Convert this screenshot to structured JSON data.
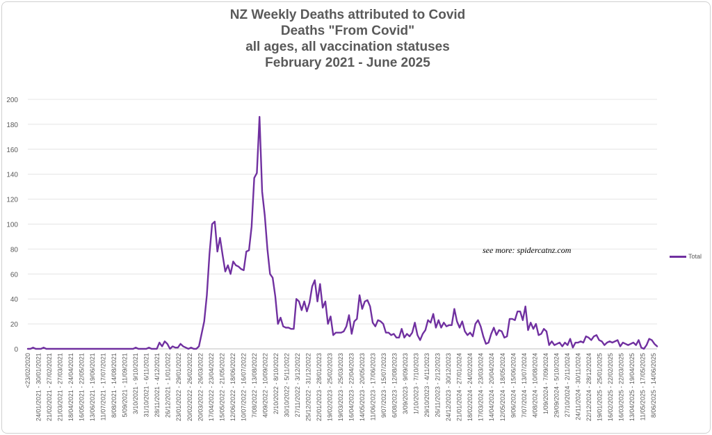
{
  "chart_data": {
    "type": "line",
    "title_lines": [
      "NZ Weekly Deaths attributed to Covid",
      "Deaths \"From Covid\"",
      "all ages, all vaccination statuses",
      "February 2021 - June 2025"
    ],
    "annotation": "see more:  spidercatnz.com",
    "ylim": [
      0,
      200
    ],
    "yticks": [
      0,
      20,
      40,
      60,
      80,
      100,
      120,
      140,
      160,
      180,
      200
    ],
    "grid": true,
    "legend_position": "right",
    "series_color": "#7030a0",
    "x_tick_labels": [
      "<23/02/2020",
      "24/01/2021 - 30/01/2021",
      "21/02/2021 - 27/02/2021",
      "21/03/2021 - 27/03/2021",
      "18/04/2021 - 24/04/2021",
      "16/05/2021 - 22/05/2021",
      "13/06/2021 - 19/06/2021",
      "11/07/2021 - 17/07/2021",
      "8/08/2021 - 14/08/2021",
      "5/09/2021 - 11/09/2021",
      "3/10/2021 - 9/10/2021",
      "31/10/2021 - 6/11/2021",
      "28/11/2021 - 4/12/2021",
      "26/12/2021 - 1/01/2022",
      "23/01/2022 - 29/01/2022",
      "20/02/2022 - 26/02/2022",
      "20/03/2022 - 26/03/2022",
      "17/04/2022 - 23/04/2022",
      "15/05/2022 - 21/05/2022",
      "12/06/2022 - 18/06/2022",
      "10/07/2022 - 16/07/2022",
      "7/08/2022 - 13/08/2022",
      "4/09/2022 - 10/09/2022",
      "2/10/2022 - 8/10/2022",
      "30/10/2022 - 5/11/2022",
      "27/11/2022 - 3/12/2022",
      "25/12/2022 - 31/12/2022",
      "22/01/2023 - 28/01/2023",
      "19/02/2023 - 25/02/2023",
      "19/03/2023 - 25/03/2023",
      "16/04/2023 - 22/04/2023",
      "14/05/2023 - 20/05/2023",
      "11/06/2023 - 17/06/2023",
      "9/07/2023 - 15/07/2023",
      "6/08/2023 - 12/08/2023",
      "3/09/2023 - 9/09/2023",
      "1/10/2023 - 7/10/2023",
      "29/10/2023 - 4/11/2023",
      "26/11/2023 - 2/12/2023",
      "24/12/2023 - 30/12/2023",
      "21/01/2024 - 27/01/2024",
      "18/02/2024 - 24/02/2024",
      "17/03/2024 - 23/03/2024",
      "14/04/2024 - 20/04/2024",
      "12/05/2024 - 18/05/2024",
      "9/06/2024 - 15/06/2024",
      "7/07/2024 - 13/07/2024",
      "4/08/2024 - 10/08/2024",
      "1/09/2024 - 7/09/2024",
      "29/09/2024 - 5/10/2024",
      "27/10/2024 - 2/11/2024",
      "24/11/2024 - 30/11/2024",
      "22/12/2024 - 28/12/2024",
      "19/01/2025 - 25/01/2025",
      "16/02/2025 - 22/02/2025",
      "16/03/2025 - 22/03/2025",
      "13/04/2025 - 19/04/2025",
      "11/05/2025 - 17/05/2025",
      "8/06/2025 - 14/06/2025"
    ],
    "series": [
      {
        "name": "Total",
        "values": [
          0,
          0,
          1,
          0,
          0,
          0,
          1,
          0,
          0,
          0,
          0,
          0,
          0,
          0,
          0,
          0,
          0,
          0,
          0,
          0,
          0,
          0,
          0,
          0,
          0,
          0,
          0,
          0,
          0,
          0,
          0,
          0,
          0,
          0,
          0,
          0,
          0,
          0,
          0,
          0,
          0,
          1,
          0,
          0,
          0,
          0,
          1,
          0,
          0,
          0,
          5,
          2,
          6,
          4,
          0,
          2,
          1,
          1,
          4,
          2,
          1,
          0,
          1,
          0,
          0,
          2,
          12,
          22,
          43,
          76,
          100,
          102,
          78,
          89,
          75,
          62,
          67,
          60,
          70,
          67,
          66,
          64,
          63,
          78,
          79,
          98,
          137,
          141,
          186,
          126,
          107,
          80,
          60,
          57,
          42,
          20,
          25,
          18,
          17,
          17,
          16,
          16,
          40,
          38,
          31,
          38,
          30,
          37,
          50,
          55,
          38,
          52,
          33,
          38,
          20,
          26,
          11,
          13,
          13,
          13,
          14,
          18,
          27,
          12,
          22,
          24,
          43,
          32,
          38,
          39,
          34,
          21,
          18,
          23,
          22,
          20,
          13,
          13,
          11,
          12,
          9,
          9,
          16,
          9,
          12,
          10,
          13,
          21,
          11,
          7,
          12,
          15,
          23,
          21,
          28,
          17,
          23,
          17,
          21,
          18,
          19,
          19,
          32,
          22,
          17,
          22,
          14,
          11,
          13,
          10,
          20,
          23,
          18,
          10,
          4,
          5,
          12,
          17,
          11,
          15,
          14,
          9,
          10,
          24,
          24,
          23,
          30,
          30,
          23,
          34,
          15,
          21,
          16,
          20,
          11,
          12,
          16,
          14,
          3,
          6,
          3,
          4,
          5,
          2,
          5,
          3,
          8,
          1,
          5,
          5,
          6,
          5,
          10,
          9,
          7,
          10,
          11,
          7,
          6,
          3,
          5,
          6,
          5,
          6,
          7,
          2,
          5,
          4,
          3,
          4,
          5,
          3,
          7,
          1,
          0,
          3,
          8,
          7,
          4,
          2
        ]
      }
    ]
  }
}
